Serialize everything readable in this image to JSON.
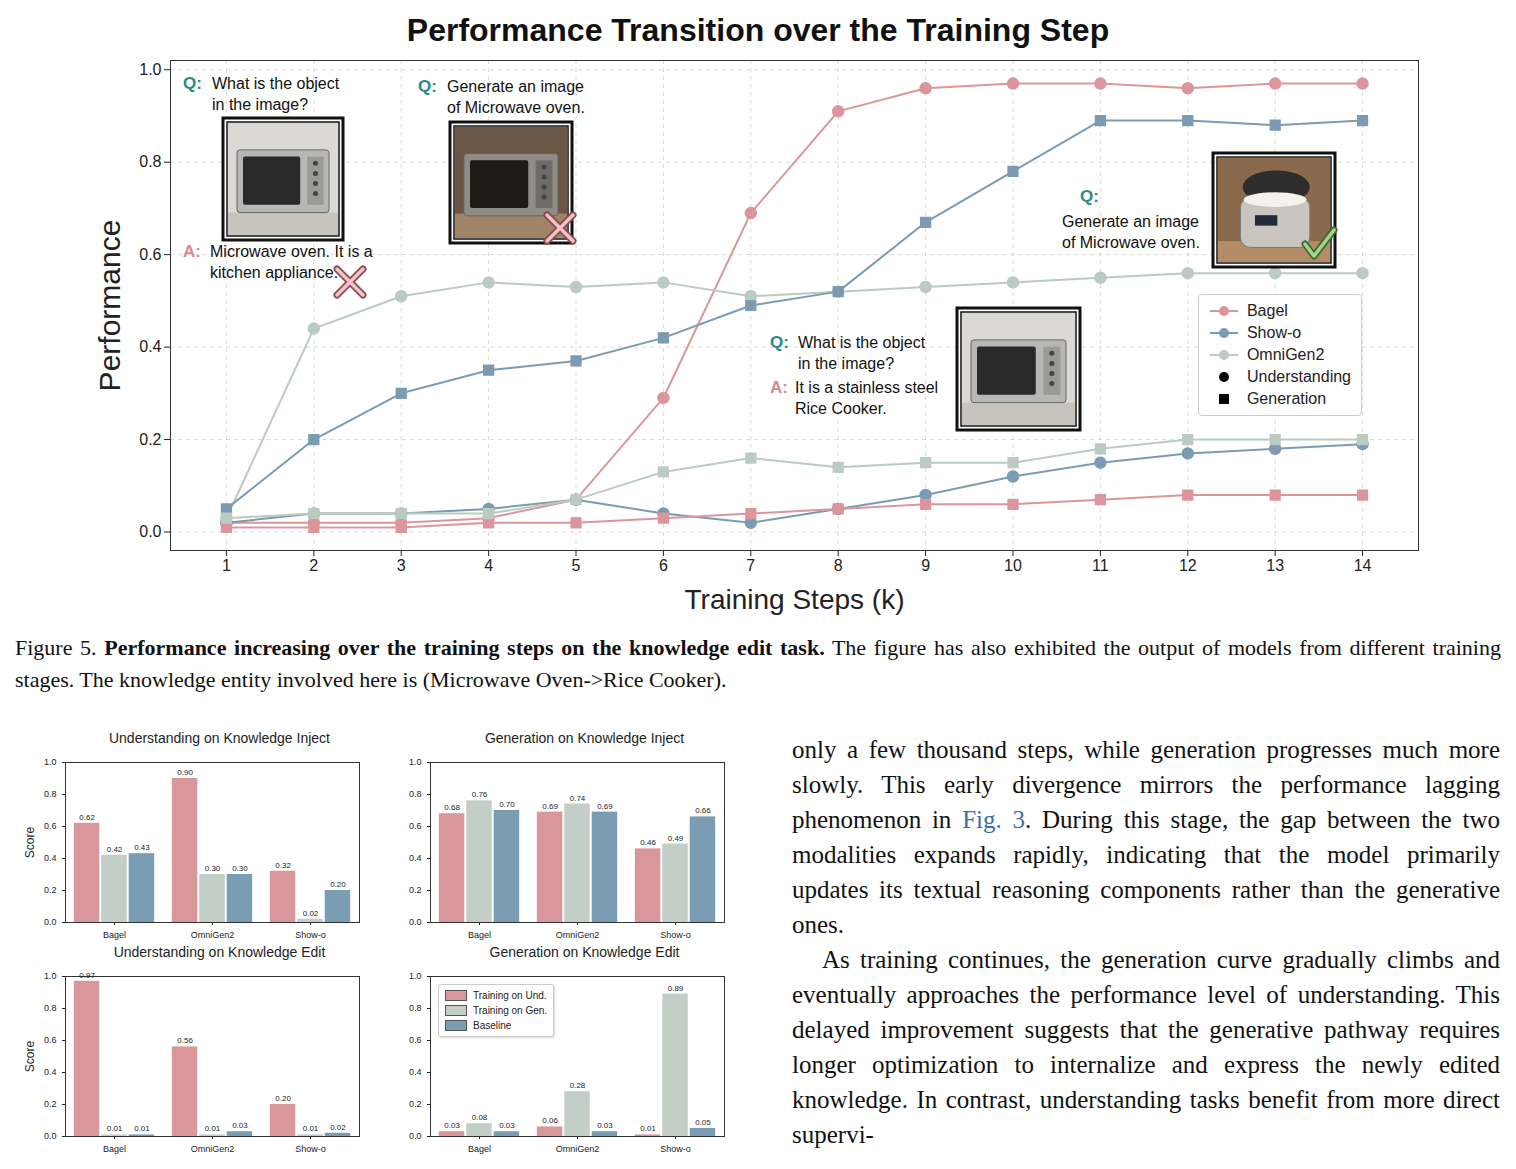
{
  "chart_data": [
    {
      "type": "line",
      "title": "Performance Transition over the Training Step",
      "x_label": "Training Steps (k)",
      "y_label": "Performance",
      "x": [
        1,
        2,
        3,
        4,
        5,
        6,
        7,
        8,
        9,
        10,
        11,
        12,
        13,
        14
      ],
      "xlim": [
        0.36,
        14.64
      ],
      "xticks": [
        1,
        2,
        3,
        4,
        5,
        6,
        7,
        8,
        9,
        10,
        11,
        12,
        13,
        14
      ],
      "ylim": [
        -0.04,
        1.02
      ],
      "yticks": [
        {
          "value": 0,
          "label": "0.0"
        },
        {
          "value": 0.2,
          "label": "0.2"
        },
        {
          "value": 0.4,
          "label": "0.4"
        },
        {
          "value": 0.6,
          "label": "0.6"
        },
        {
          "value": 0.8,
          "label": "0.8"
        },
        {
          "value": 1,
          "label": "1.0"
        }
      ],
      "grid": true,
      "legend": "right",
      "series": [
        {
          "name": "Bagel",
          "task": "Understanding",
          "color": "#dc969b",
          "marker": "circle",
          "values": [
            0.02,
            0.02,
            0.02,
            0.03,
            0.07,
            0.29,
            0.69,
            0.91,
            0.96,
            0.97,
            0.97,
            0.96,
            0.97,
            0.97
          ]
        },
        {
          "name": "Show-o",
          "task": "Understanding",
          "color": "#7b9bb2",
          "marker": "circle",
          "values": [
            0.02,
            0.04,
            0.04,
            0.05,
            0.07,
            0.04,
            0.02,
            0.05,
            0.08,
            0.12,
            0.15,
            0.17,
            0.18,
            0.19
          ]
        },
        {
          "name": "OmniGen2",
          "task": "Understanding",
          "color": "#bccbc1",
          "marker": "circle",
          "values": [
            0.03,
            0.44,
            0.51,
            0.54,
            0.53,
            0.54,
            0.51,
            0.52,
            0.53,
            0.54,
            0.55,
            0.56,
            0.56,
            0.56
          ]
        },
        {
          "name": "Bagel",
          "task": "Generation",
          "color": "#dc969b",
          "marker": "square",
          "values": [
            0.01,
            0.01,
            0.01,
            0.02,
            0.02,
            0.03,
            0.04,
            0.05,
            0.06,
            0.06,
            0.07,
            0.08,
            0.08,
            0.08
          ]
        },
        {
          "name": "Show-o",
          "task": "Generation",
          "color": "#7b9bb2",
          "marker": "square",
          "values": [
            0.05,
            0.2,
            0.3,
            0.35,
            0.37,
            0.42,
            0.49,
            0.52,
            0.67,
            0.78,
            0.89,
            0.89,
            0.88,
            0.89
          ]
        },
        {
          "name": "OmniGen2",
          "task": "Generation",
          "color": "#bccbc1",
          "marker": "square",
          "values": [
            0.03,
            0.04,
            0.04,
            0.04,
            0.07,
            0.13,
            0.16,
            0.14,
            0.15,
            0.15,
            0.18,
            0.2,
            0.2,
            0.2
          ]
        }
      ],
      "annotations": [
        {
          "question_label": "Q:",
          "question": "What is the object in the image?",
          "answer_label": "A:",
          "answer": "Microwave oven. It is a kitchen appliance."
        },
        {
          "question_label": "Q:",
          "question": "Generate an image of Microwave oven."
        },
        {
          "question_label": "Q:",
          "question": "Generate an image of Microwave oven."
        },
        {
          "question_label": "Q:",
          "question": "What is the object in the image?",
          "answer_label": "A:",
          "answer": "It is a stainless steel Rice Cooker."
        }
      ]
    },
    {
      "type": "bar",
      "title": "Understanding on Knowledge Inject",
      "y_label": "Score",
      "categories": [
        "Bagel",
        "OmniGen2",
        "Show-o"
      ],
      "ylim": [
        0,
        1
      ],
      "yticks": [
        {
          "value": 0,
          "label": "0.0"
        },
        {
          "value": 0.2,
          "label": "0.2"
        },
        {
          "value": 0.4,
          "label": "0.4"
        },
        {
          "value": 0.6,
          "label": "0.6"
        },
        {
          "value": 0.8,
          "label": "0.8"
        },
        {
          "value": 1,
          "label": "1.0"
        }
      ],
      "grid": false,
      "data_labels": true,
      "series": [
        {
          "name": "Training on Und.",
          "color": "#d9979b",
          "values": [
            0.62,
            0.9,
            0.32
          ],
          "value_labels": [
            "0.62",
            "0.90",
            "0.32"
          ]
        },
        {
          "name": "Training on Gen.",
          "color": "#c2cec6",
          "values": [
            0.42,
            0.3,
            0.02
          ],
          "value_labels": [
            "0.42",
            "0.30",
            "0.02"
          ]
        },
        {
          "name": "Baseline",
          "color": "#7b9db3",
          "values": [
            0.43,
            0.3,
            0.2
          ],
          "value_labels": [
            "0.43",
            "0.30",
            "0.20"
          ]
        }
      ]
    },
    {
      "type": "bar",
      "title": "Generation on Knowledge Inject",
      "categories": [
        "Bagel",
        "OmniGen2",
        "Show-o"
      ],
      "ylim": [
        0,
        1
      ],
      "yticks": [
        {
          "value": 0,
          "label": "0.0"
        },
        {
          "value": 0.2,
          "label": "0.2"
        },
        {
          "value": 0.4,
          "label": "0.4"
        },
        {
          "value": 0.6,
          "label": "0.6"
        },
        {
          "value": 0.8,
          "label": "0.8"
        },
        {
          "value": 1,
          "label": "1.0"
        }
      ],
      "grid": false,
      "data_labels": true,
      "series": [
        {
          "name": "Training on Und.",
          "color": "#d9979b",
          "values": [
            0.68,
            0.69,
            0.46
          ],
          "value_labels": [
            "0.68",
            "0.69",
            "0.46"
          ]
        },
        {
          "name": "Training on Gen.",
          "color": "#c2cec6",
          "values": [
            0.76,
            0.74,
            0.49
          ],
          "value_labels": [
            "0.76",
            "0.74",
            "0.49"
          ]
        },
        {
          "name": "Baseline",
          "color": "#7b9db3",
          "values": [
            0.7,
            0.69,
            0.66
          ],
          "value_labels": [
            "0.70",
            "0.69",
            "0.66"
          ]
        }
      ]
    },
    {
      "type": "bar",
      "title": "Understanding on Knowledge Edit",
      "y_label": "Score",
      "categories": [
        "Bagel",
        "OmniGen2",
        "Show-o"
      ],
      "ylim": [
        0,
        1
      ],
      "yticks": [
        {
          "value": 0,
          "label": "0.0"
        },
        {
          "value": 0.2,
          "label": "0.2"
        },
        {
          "value": 0.4,
          "label": "0.4"
        },
        {
          "value": 0.6,
          "label": "0.6"
        },
        {
          "value": 0.8,
          "label": "0.8"
        },
        {
          "value": 1,
          "label": "1.0"
        }
      ],
      "grid": false,
      "data_labels": true,
      "series": [
        {
          "name": "Training on Und.",
          "color": "#d9979b",
          "values": [
            0.97,
            0.56,
            0.2
          ],
          "value_labels": [
            "0.97",
            "0.56",
            "0.20"
          ]
        },
        {
          "name": "Training on Gen.",
          "color": "#c2cec6",
          "values": [
            0.01,
            0.01,
            0.01
          ],
          "value_labels": [
            "0.01",
            "0.01",
            "0.01"
          ]
        },
        {
          "name": "Baseline",
          "color": "#7b9db3",
          "values": [
            0.01,
            0.03,
            0.02
          ],
          "value_labels": [
            "0.01",
            "0.03",
            "0.02"
          ]
        }
      ]
    },
    {
      "type": "bar",
      "title": "Generation on Knowledge Edit",
      "categories": [
        "Bagel",
        "OmniGen2",
        "Show-o"
      ],
      "ylim": [
        0,
        1
      ],
      "yticks": [
        {
          "value": 0,
          "label": "0.0"
        },
        {
          "value": 0.2,
          "label": "0.2"
        },
        {
          "value": 0.4,
          "label": "0.4"
        },
        {
          "value": 0.6,
          "label": "0.6"
        },
        {
          "value": 0.8,
          "label": "0.8"
        },
        {
          "value": 1,
          "label": "1.0"
        }
      ],
      "grid": false,
      "data_labels": true,
      "legend": "upper left",
      "series": [
        {
          "name": "Training on Und.",
          "color": "#d9979b",
          "values": [
            0.03,
            0.06,
            0.01
          ],
          "value_labels": [
            "0.03",
            "0.06",
            "0.01"
          ]
        },
        {
          "name": "Training on Gen.",
          "color": "#c2cec6",
          "values": [
            0.08,
            0.28,
            0.89
          ],
          "value_labels": [
            "0.08",
            "0.28",
            "0.89"
          ]
        },
        {
          "name": "Baseline",
          "color": "#7b9db3",
          "values": [
            0.03,
            0.03,
            0.05
          ],
          "value_labels": [
            "0.03",
            "0.03",
            "0.05"
          ]
        }
      ]
    }
  ],
  "figure_caption": [
    {
      "text": "Figure 5. "
    },
    {
      "text": "Performance increasing over the training steps on the knowledge edit task.",
      "bold": true
    },
    {
      "text": " The figure has also exhibited the output of models from different training stages. The knowledge entity involved here is (Microwave Oven->Rice Cooker)."
    }
  ],
  "body_text": [
    [
      {
        "text": "only a few thousand steps, while generation progresses much more slowly. This early divergence mirrors the performance lagging phenomenon in "
      },
      {
        "text": "Fig. 3",
        "link": true
      },
      {
        "text": ". During this stage, the gap between the two modalities expands rapidly, indicating that the model primarily updates its textual reasoning components rather than the generative ones."
      }
    ],
    [
      {
        "text": "As training continues, the generation curve gradually climbs and eventually approaches the performance level of understanding. This delayed improvement suggests that the generative pathway requires longer optimization to internalize and express the newly edited knowledge. In contrast, understanding tasks benefit from more direct supervi-"
      }
    ]
  ]
}
